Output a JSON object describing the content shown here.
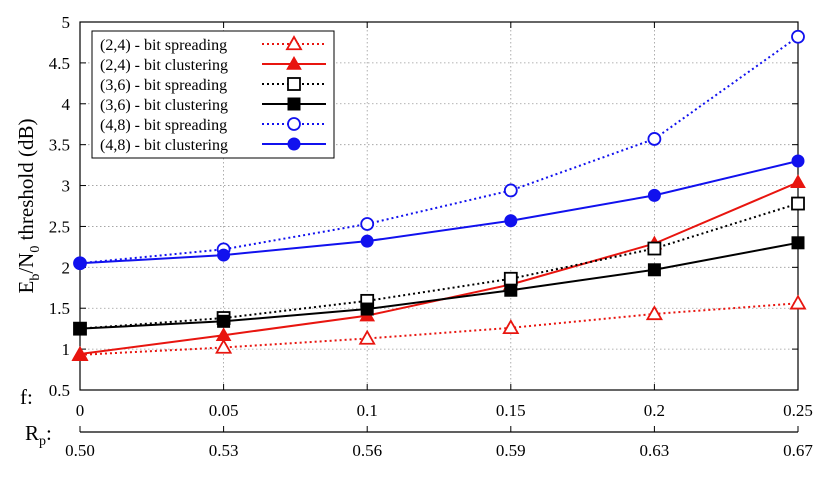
{
  "chart_data": {
    "type": "line",
    "ylabel_parts": {
      "e": "E",
      "b": "b",
      "slash": "/N",
      "zero": "0",
      "rest": " threshold (dB)"
    },
    "ylim": [
      0.5,
      5
    ],
    "yticks": [
      "0.5",
      "1",
      "1.5",
      "2",
      "2.5",
      "3",
      "3.5",
      "4",
      "4.5",
      "5"
    ],
    "grid": true,
    "legend_position": "top-left",
    "x_axes": [
      {
        "label": "f:",
        "ticks": [
          "0",
          "0.05",
          "0.1",
          "0.15",
          "0.2",
          "0.25"
        ]
      },
      {
        "label_main": "R",
        "label_sub": "p",
        "label_tail": ":",
        "ticks": [
          "0.50",
          "0.53",
          "0.56",
          "0.59",
          "0.63",
          "0.67"
        ]
      }
    ],
    "x": [
      0,
      0.05,
      0.1,
      0.15,
      0.2,
      0.25
    ],
    "series": [
      {
        "name": "(2,4) - bit spreading",
        "values": [
          0.93,
          1.02,
          1.13,
          1.26,
          1.43,
          1.56
        ],
        "color": "#e8150f",
        "line": "dotted",
        "marker": "triangle-open"
      },
      {
        "name": "(2,4) - bit clustering",
        "values": [
          0.94,
          1.17,
          1.41,
          1.79,
          2.29,
          3.04
        ],
        "color": "#e8150f",
        "line": "solid",
        "marker": "triangle-filled"
      },
      {
        "name": "(3,6) - bit spreading",
        "values": [
          1.25,
          1.38,
          1.59,
          1.86,
          2.23,
          2.78
        ],
        "color": "#000000",
        "line": "dotted",
        "marker": "square-open"
      },
      {
        "name": "(3,6) - bit clustering",
        "values": [
          1.25,
          1.34,
          1.49,
          1.72,
          1.97,
          2.3
        ],
        "color": "#000000",
        "line": "solid",
        "marker": "square-filled"
      },
      {
        "name": "(4,8) - bit spreading",
        "values": [
          2.05,
          2.22,
          2.53,
          2.94,
          3.57,
          4.82
        ],
        "color": "#1111ee",
        "line": "dotted",
        "marker": "circle-open"
      },
      {
        "name": "(4,8) - bit clustering",
        "values": [
          2.05,
          2.15,
          2.32,
          2.57,
          2.88,
          3.3
        ],
        "color": "#1111ee",
        "line": "solid",
        "marker": "circle-filled"
      }
    ]
  }
}
